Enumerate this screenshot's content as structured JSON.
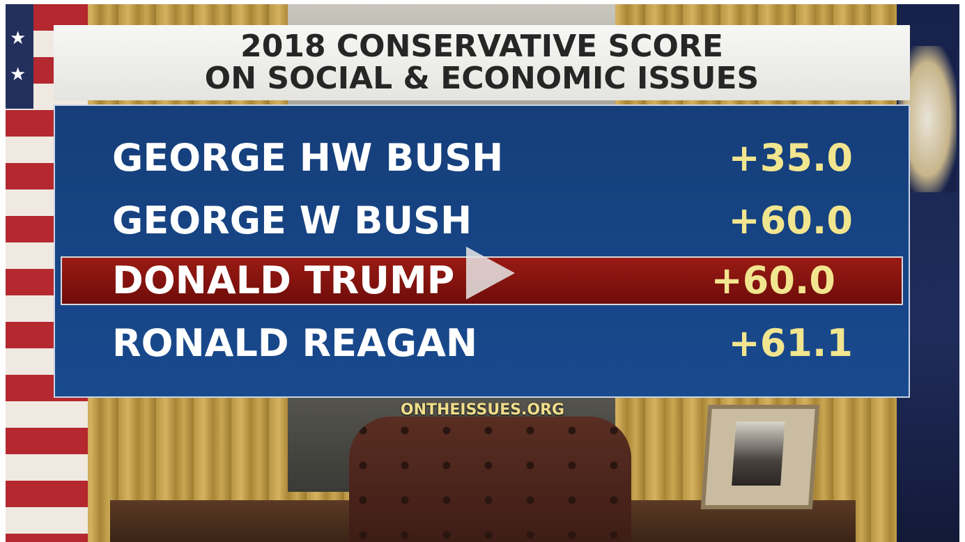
{
  "graphic": {
    "title_line1": "2018 CONSERVATIVE SCORE",
    "title_line2": "ON SOCIAL & ECONOMIC ISSUES",
    "rows": [
      {
        "name": "GEORGE HW BUSH",
        "score": "+35.0"
      },
      {
        "name": "GEORGE W BUSH",
        "score": "+60.0"
      },
      {
        "name": "DONALD TRUMP",
        "score": "+60.0",
        "highlighted": true
      },
      {
        "name": "RONALD REAGAN",
        "score": "+61.1"
      }
    ],
    "source": "ONTHEISSUES.ORG"
  },
  "video": {
    "play_icon": "play-icon"
  },
  "colors": {
    "panel_blue": "#194a8e",
    "highlight_red": "#8a1510",
    "score_yellow": "#f2e58f",
    "title_bg": "#f0f0ee"
  }
}
